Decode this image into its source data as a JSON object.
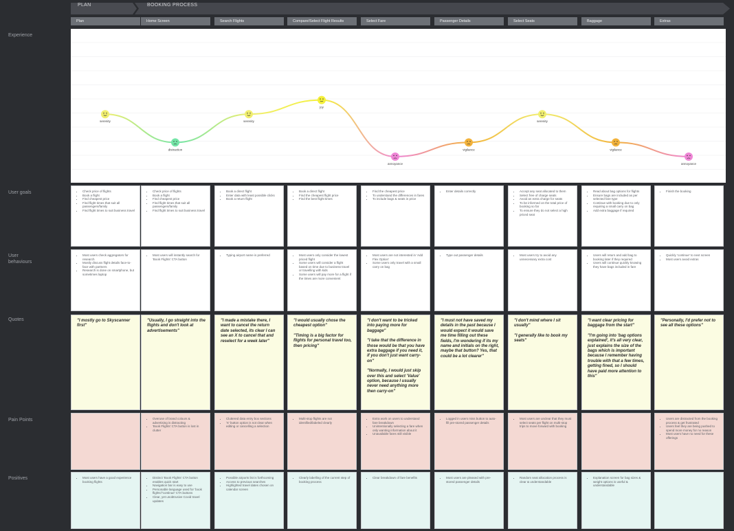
{
  "phases": {
    "plan": "PLAN",
    "booking": "BOOKING PROCESS"
  },
  "stages": [
    "Plan",
    "Home Screen",
    "Search Flights",
    "Compare/Select Flight Results",
    "Select Fare",
    "Passenger Details",
    "Select Seats",
    "Baggage",
    "Extras"
  ],
  "row_labels": {
    "experience": "Experience",
    "goals": "User goals",
    "behaviours": "User behaviours",
    "quotes": "Quotes",
    "pain": "Pain Points",
    "positives": "Positives"
  },
  "experience": {
    "emotion_levels": [
      3,
      1,
      3,
      4,
      0,
      1,
      3,
      1,
      0
    ],
    "emotions": [
      "serenity",
      "distraction",
      "serenity",
      "joy",
      "annoyance",
      "vigilance",
      "serenity",
      "vigilance",
      "annoyance"
    ],
    "colors": [
      "#f0ee6f",
      "#74e5a7",
      "#f0ee6f",
      "#f4f03a",
      "#ef86d6",
      "#f2b23b",
      "#f0ee6f",
      "#f2b23b",
      "#ef86d6"
    ]
  },
  "goals": [
    [
      "Check price of flights",
      "Book a flight",
      "Find cheapest price",
      "Find flight times that suit all passengers/family",
      "Find flight times to suit business travel"
    ],
    [
      "Check price of flights",
      "Book a flight",
      "Find cheapest price",
      "Find flight times that suit all passengers/family",
      "Find flight times to suit business travel"
    ],
    [
      "Book a direct flight",
      "Enter data with least possible clicks",
      "Book a return flight"
    ],
    [
      "Book a direct flight",
      "Find the cheapest flight price",
      "Find the best flight times"
    ],
    [
      "Find the cheapest price",
      "To understand the differences in fares",
      "To include bags & seats in price"
    ],
    [
      "Enter details correctly"
    ],
    [
      "Accept any seat allocated to them",
      "Select free of charge seats",
      "Avoid an extra charge for seats",
      "To be informed on the total price of booking so far",
      "To ensure they do not select a high priced seat"
    ],
    [
      "Read about bag options for flights",
      "Ensure bags are included as per selected fare type",
      "Continue with booking due to only requiring a small carry on bag",
      "Add extra baggage if required"
    ],
    [
      "Finish the booking"
    ]
  ],
  "behaviours": [
    [
      "Most users check aggregators for research",
      "Mostly discuss flight details face-to-face with partners",
      "Research is done on smartphone, but sometimes laptop"
    ],
    [
      "Most users will instantly search for 'Book Flights' CTA button"
    ],
    [
      "Typing airport name is preferred"
    ],
    [
      "Most users only consider the lowest priced flight",
      "Some users will consider a flight based on time due to business travel or travelling with kids",
      "Some users will pay more for a flight if the times are more convenient"
    ],
    [
      "Most users are not interested in 'Add Flex Option'",
      "Some users only travel with a small carry on bag"
    ],
    [
      "Type out passenger details"
    ],
    [
      "Most users try to avoid any unnecessary extra cost"
    ],
    [
      "Users will return and add bag to booking later if they required",
      "Users will continue quickly knowing they have bags included in fare"
    ],
    [
      "Quickly 'continue' to next screen",
      "Most users avoid extras"
    ]
  ],
  "quotes": [
    [
      "\"I mostly go to Skyscanner first\""
    ],
    [
      "\"Usually, I go straight into the flights and don't look at advertisements\""
    ],
    [
      "\"I made a mistake there, I want to cancel the return date selected, its clear I can see an X to cancel that and reselect for a week later\""
    ],
    [
      "\"I would usually chose the cheapest option\"",
      "\"Timing is a big factor for flights for personal travel too, then pricing\""
    ],
    [
      "\"I don't want to be tricked into paying more for baggage\"",
      "\"I take that the difference in those would be that you have extra baggage if you need it, if you don't just want carry-on\"",
      "\"Normally, I would just skip over this and select 'Value' option, because I usually never need anything more then carry-on\""
    ],
    [
      "\"I must not have saved my details in the past because I would expect it would save me time filling out these fields, I'm wondering if its my name and initials on the right, maybe that button? Yes, that could be a lot clearer\""
    ],
    [
      "\"I don't mind where I sit usually\"",
      "\"I generally like to book my seats\""
    ],
    [
      "\"I want clear pricing for baggage from the start\"",
      "\"I'm going into 'bag options explained', it's all very clear, just explains the size of the bags which is important because I remember having trouble with that a few times, getting fined, so I should have paid more attention to this\""
    ],
    [
      "\"Personally, I'd prefer not to see all these options\""
    ]
  ],
  "pain": [
    [],
    [
      "Overuse of brand colours & advertising is distracting",
      "'Book Flights' CTA button is lost in clutter"
    ],
    [
      "Cluttered data entry box sections",
      "'X' button option is not clear when editing or cancelling a selection"
    ],
    [
      "Multi-stop flights are not identified/labeled clearly"
    ],
    [
      "Extra work on users to understand fare breakdown",
      "Unintentionally selecting a fare when only wanting information about it",
      "Unavailable fares still visible"
    ],
    [
      "Logged in users miss button to auto-fill pre-stored passenger details"
    ],
    [
      "Most users are unclear that they must select seats per flight on multi-stop trips to move forward with booking"
    ],
    [],
    [
      "Users are distracted from the booking process & get frustrated",
      "Users feel they are being pushed to spend more money for no reason",
      "Most users have no need for these offerings"
    ]
  ],
  "positives": [
    [
      "Most users have a good experience booking flights"
    ],
    [
      "Distinct 'Book Flights' CTA button enables quick start",
      "Navigation bar is easy to use",
      "Personable language used for 'book flights'/'continue' CTA buttons",
      "Clear, yet unobtrusive Covid travel updates"
    ],
    [
      "Possible airports list is forthcoming",
      "Access to previous searches",
      "Highlighted travel dates chosen on calendar screen"
    ],
    [
      "Clearly labelling of the current step of booking process"
    ],
    [
      "Clear breakdown of fare benefits"
    ],
    [
      "Most users are pleased with pre-stored passenger details"
    ],
    [
      "Random seat allocation process is clear & understandable"
    ],
    [
      "Explanation screen for bag sizes & weight options is useful & understandable"
    ],
    []
  ]
}
